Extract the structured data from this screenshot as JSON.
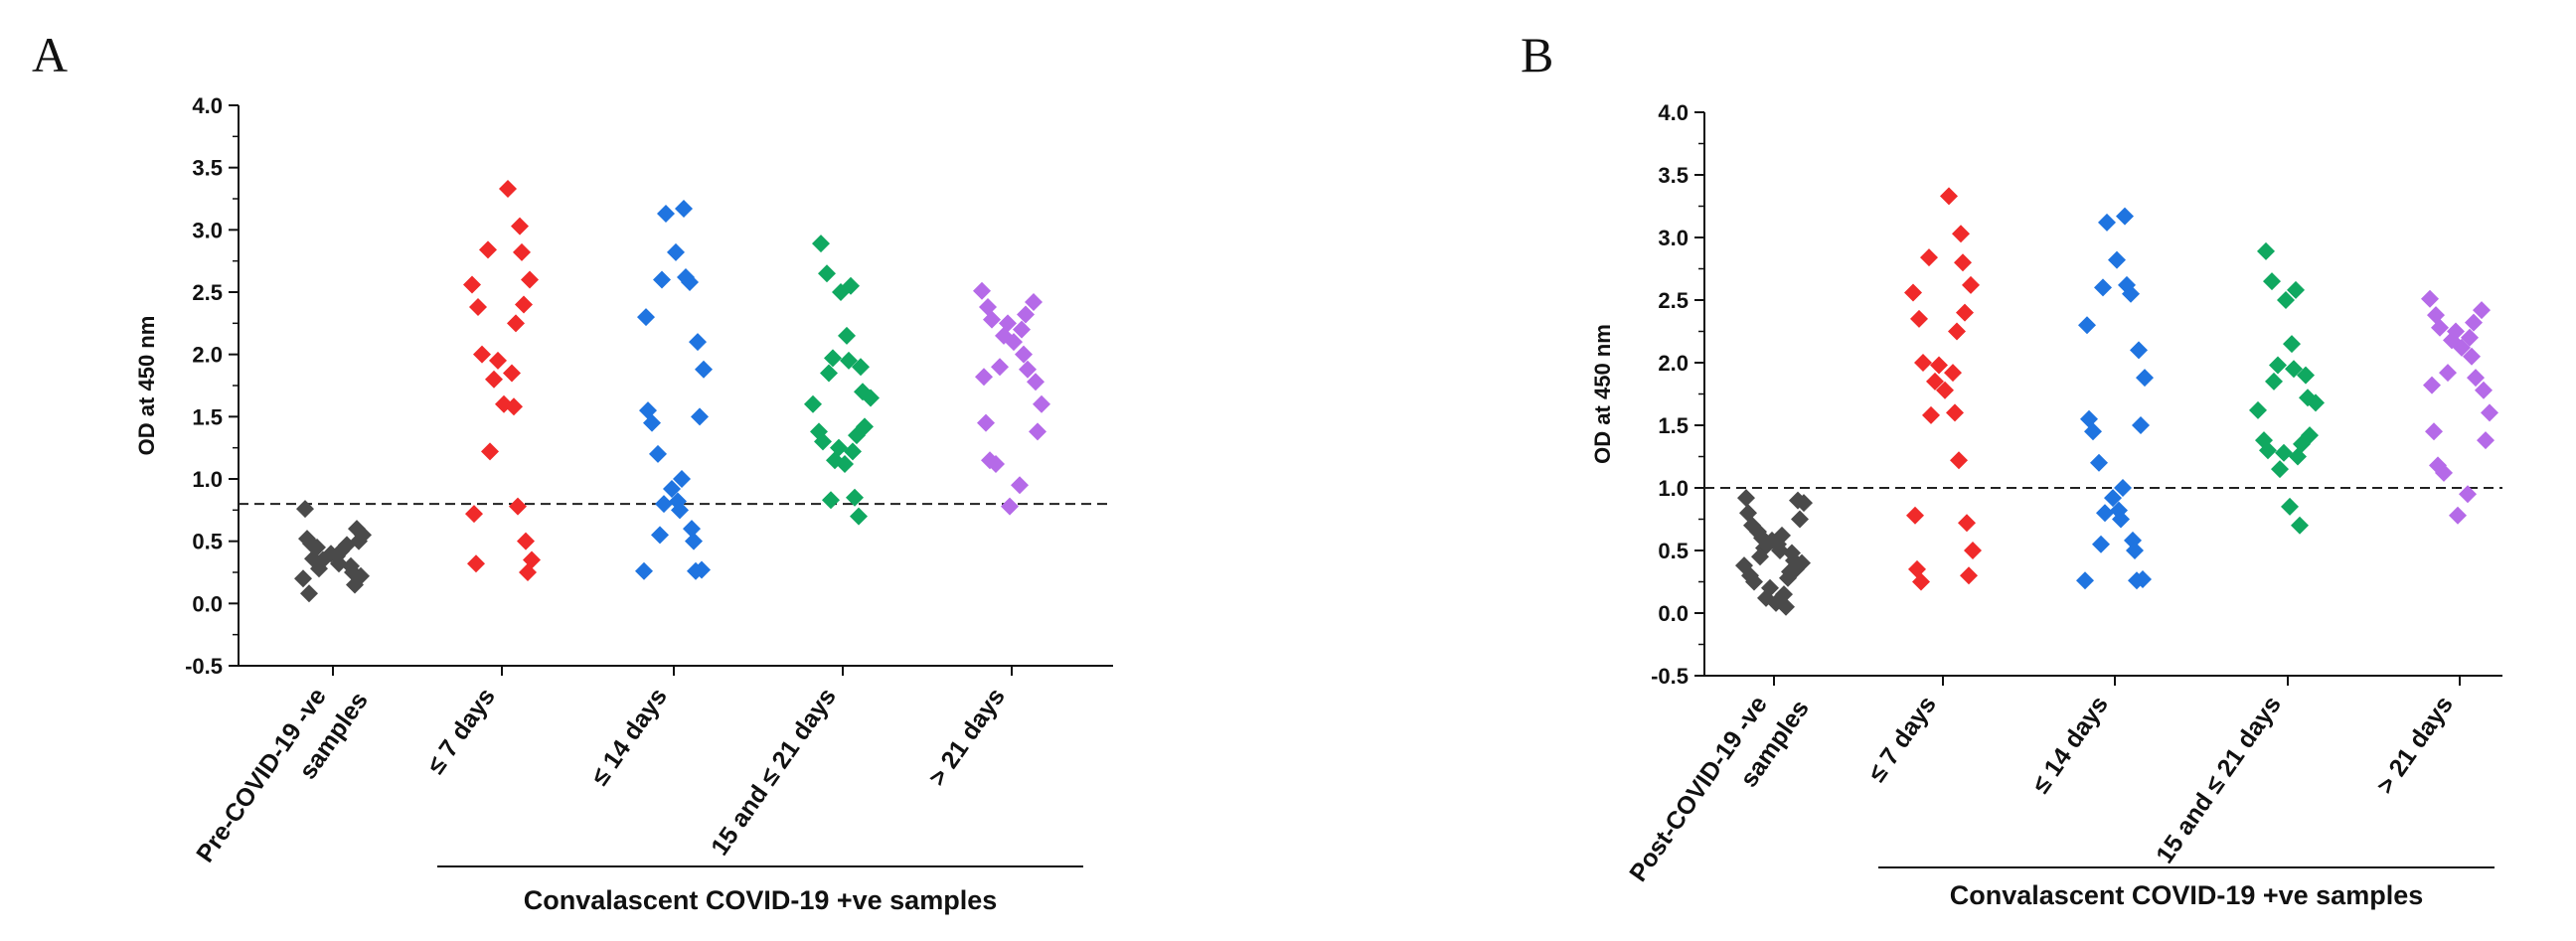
{
  "figure": {
    "panels": [
      "A",
      "B"
    ]
  },
  "colors": {
    "pre": "#4a4a4a",
    "d7": "#f02a2a",
    "d14": "#1f74e0",
    "d21": "#10a860",
    "gt21": "#b56ae8",
    "axis": "#111111",
    "threshold": "#222222"
  },
  "chart_data": [
    {
      "type": "scatter",
      "panel": "A",
      "title": "",
      "xlabel": "Convalascent COVID-19 +ve samples",
      "ylabel": "OD at 450 nm",
      "ylim": [
        -0.5,
        4.0
      ],
      "yticks": [
        "-0.5",
        "0.0",
        "0.5",
        "1.0",
        "1.5",
        "2.0",
        "2.5",
        "3.0",
        "3.5",
        "4.0"
      ],
      "cutoff": 0.8,
      "categories": [
        [
          "Pre-COVID-19 -ve",
          "samples"
        ],
        [
          "≤ 7 days"
        ],
        [
          "≤ 14 days"
        ],
        [
          "15 and ≤ 21 days"
        ],
        [
          "> 21 days"
        ]
      ],
      "series": [
        {
          "name": "Pre-COVID-19 -ve samples",
          "color_key": "pre",
          "values": [
            0.76,
            0.6,
            0.55,
            0.52,
            0.5,
            0.48,
            0.45,
            0.42,
            0.4,
            0.38,
            0.35,
            0.32,
            0.3,
            0.28,
            0.25,
            0.22,
            0.2,
            0.15,
            0.08,
            0.47,
            0.36
          ]
        },
        {
          "name": "≤ 7 days",
          "color_key": "d7",
          "values": [
            3.33,
            3.03,
            2.84,
            2.82,
            2.6,
            2.56,
            2.4,
            2.38,
            2.25,
            2.0,
            1.95,
            1.85,
            1.8,
            1.6,
            1.58,
            1.22,
            0.78,
            0.72,
            0.5,
            0.35,
            0.32,
            0.25
          ]
        },
        {
          "name": "≤ 14 days",
          "color_key": "d14",
          "values": [
            3.17,
            3.13,
            2.82,
            2.62,
            2.6,
            2.58,
            2.3,
            2.1,
            1.88,
            1.55,
            1.5,
            1.45,
            1.2,
            1.0,
            0.92,
            0.82,
            0.8,
            0.75,
            0.6,
            0.55,
            0.5,
            0.27,
            0.26,
            0.26
          ]
        },
        {
          "name": "15 and ≤ 21 days",
          "color_key": "d21",
          "values": [
            2.89,
            2.65,
            2.55,
            2.5,
            2.15,
            1.97,
            1.95,
            1.9,
            1.85,
            1.7,
            1.65,
            1.6,
            1.42,
            1.38,
            1.35,
            1.3,
            1.25,
            1.22,
            1.15,
            1.12,
            0.85,
            0.83,
            0.7
          ]
        },
        {
          "name": "> 21 days",
          "color_key": "gt21",
          "values": [
            2.51,
            2.42,
            2.38,
            2.32,
            2.28,
            2.25,
            2.2,
            2.15,
            2.1,
            2.0,
            1.9,
            1.88,
            1.82,
            1.78,
            1.6,
            1.45,
            1.38,
            1.15,
            1.12,
            0.95,
            0.78
          ]
        }
      ]
    },
    {
      "type": "scatter",
      "panel": "B",
      "title": "",
      "xlabel": "Convalascent COVID-19 +ve samples",
      "ylabel": "OD at 450 nm",
      "ylim": [
        -0.5,
        4.0
      ],
      "yticks": [
        "-0.5",
        "0.0",
        "0.5",
        "1.0",
        "1.5",
        "2.0",
        "2.5",
        "3.0",
        "3.5",
        "4.0"
      ],
      "cutoff": 1.0,
      "categories": [
        [
          "Post-COVID-19 -ve",
          "samples"
        ],
        [
          "≤ 7 days"
        ],
        [
          "≤ 14 days"
        ],
        [
          "15 and ≤ 21 days"
        ],
        [
          "> 21 days"
        ]
      ],
      "series": [
        {
          "name": "Post-COVID-19 -ve samples",
          "color_key": "pre",
          "values": [
            0.92,
            0.9,
            0.88,
            0.8,
            0.75,
            0.7,
            0.65,
            0.62,
            0.58,
            0.55,
            0.52,
            0.5,
            0.48,
            0.45,
            0.42,
            0.4,
            0.38,
            0.35,
            0.3,
            0.28,
            0.25,
            0.2,
            0.15,
            0.12,
            0.08,
            0.05,
            0.6,
            0.33
          ]
        },
        {
          "name": "≤ 7 days",
          "color_key": "d7",
          "values": [
            3.33,
            3.03,
            2.84,
            2.8,
            2.62,
            2.56,
            2.4,
            2.35,
            2.25,
            2.0,
            1.98,
            1.92,
            1.85,
            1.78,
            1.6,
            1.58,
            1.22,
            0.78,
            0.72,
            0.5,
            0.35,
            0.3,
            0.25
          ]
        },
        {
          "name": "≤ 14 days",
          "color_key": "d14",
          "values": [
            3.17,
            3.12,
            2.82,
            2.62,
            2.6,
            2.55,
            2.3,
            2.1,
            1.88,
            1.55,
            1.5,
            1.45,
            1.2,
            1.0,
            0.92,
            0.82,
            0.8,
            0.75,
            0.58,
            0.55,
            0.5,
            0.27,
            0.26,
            0.26
          ]
        },
        {
          "name": "15 and ≤ 21 days",
          "color_key": "d21",
          "values": [
            2.89,
            2.65,
            2.58,
            2.5,
            2.15,
            1.98,
            1.95,
            1.9,
            1.85,
            1.72,
            1.68,
            1.62,
            1.42,
            1.38,
            1.35,
            1.3,
            1.28,
            1.25,
            1.15,
            0.85,
            0.7
          ]
        },
        {
          "name": "> 21 days",
          "color_key": "gt21",
          "values": [
            2.51,
            2.42,
            2.38,
            2.32,
            2.28,
            2.25,
            2.2,
            2.18,
            2.12,
            2.05,
            1.92,
            1.88,
            1.82,
            1.78,
            1.6,
            1.45,
            1.38,
            1.18,
            1.12,
            0.95,
            0.78
          ]
        }
      ]
    }
  ]
}
